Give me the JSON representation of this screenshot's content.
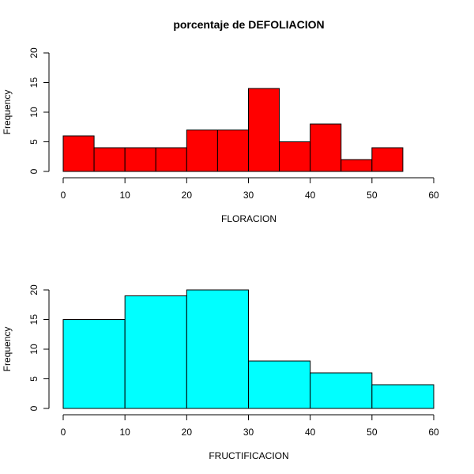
{
  "chart_data": [
    {
      "type": "bar",
      "title": "porcentaje de DEFOLIACION",
      "xlabel": "FLORACION",
      "ylabel": "Frequency",
      "color": "#ff0000",
      "xlim": [
        0,
        60
      ],
      "ylim": [
        0,
        20
      ],
      "xticks": [
        0,
        10,
        20,
        30,
        40,
        50,
        60
      ],
      "yticks": [
        0,
        5,
        10,
        15,
        20
      ],
      "bins": [
        {
          "from": 0,
          "to": 5,
          "value": 6
        },
        {
          "from": 5,
          "to": 10,
          "value": 4
        },
        {
          "from": 10,
          "to": 15,
          "value": 4
        },
        {
          "from": 15,
          "to": 20,
          "value": 4
        },
        {
          "from": 20,
          "to": 25,
          "value": 7
        },
        {
          "from": 25,
          "to": 30,
          "value": 7
        },
        {
          "from": 30,
          "to": 35,
          "value": 14
        },
        {
          "from": 35,
          "to": 40,
          "value": 5
        },
        {
          "from": 40,
          "to": 45,
          "value": 8
        },
        {
          "from": 45,
          "to": 50,
          "value": 2
        },
        {
          "from": 50,
          "to": 55,
          "value": 4
        }
      ]
    },
    {
      "type": "bar",
      "title": "",
      "xlabel": "FRUCTIFICACION",
      "ylabel": "Frequency",
      "color": "#00ffff",
      "xlim": [
        0,
        60
      ],
      "ylim": [
        0,
        20
      ],
      "xticks": [
        0,
        10,
        20,
        30,
        40,
        50,
        60
      ],
      "yticks": [
        0,
        5,
        10,
        15,
        20
      ],
      "bins": [
        {
          "from": 0,
          "to": 10,
          "value": 15
        },
        {
          "from": 10,
          "to": 20,
          "value": 19
        },
        {
          "from": 20,
          "to": 30,
          "value": 20
        },
        {
          "from": 30,
          "to": 40,
          "value": 8
        },
        {
          "from": 40,
          "to": 50,
          "value": 6
        },
        {
          "from": 50,
          "to": 60,
          "value": 4
        }
      ]
    }
  ]
}
